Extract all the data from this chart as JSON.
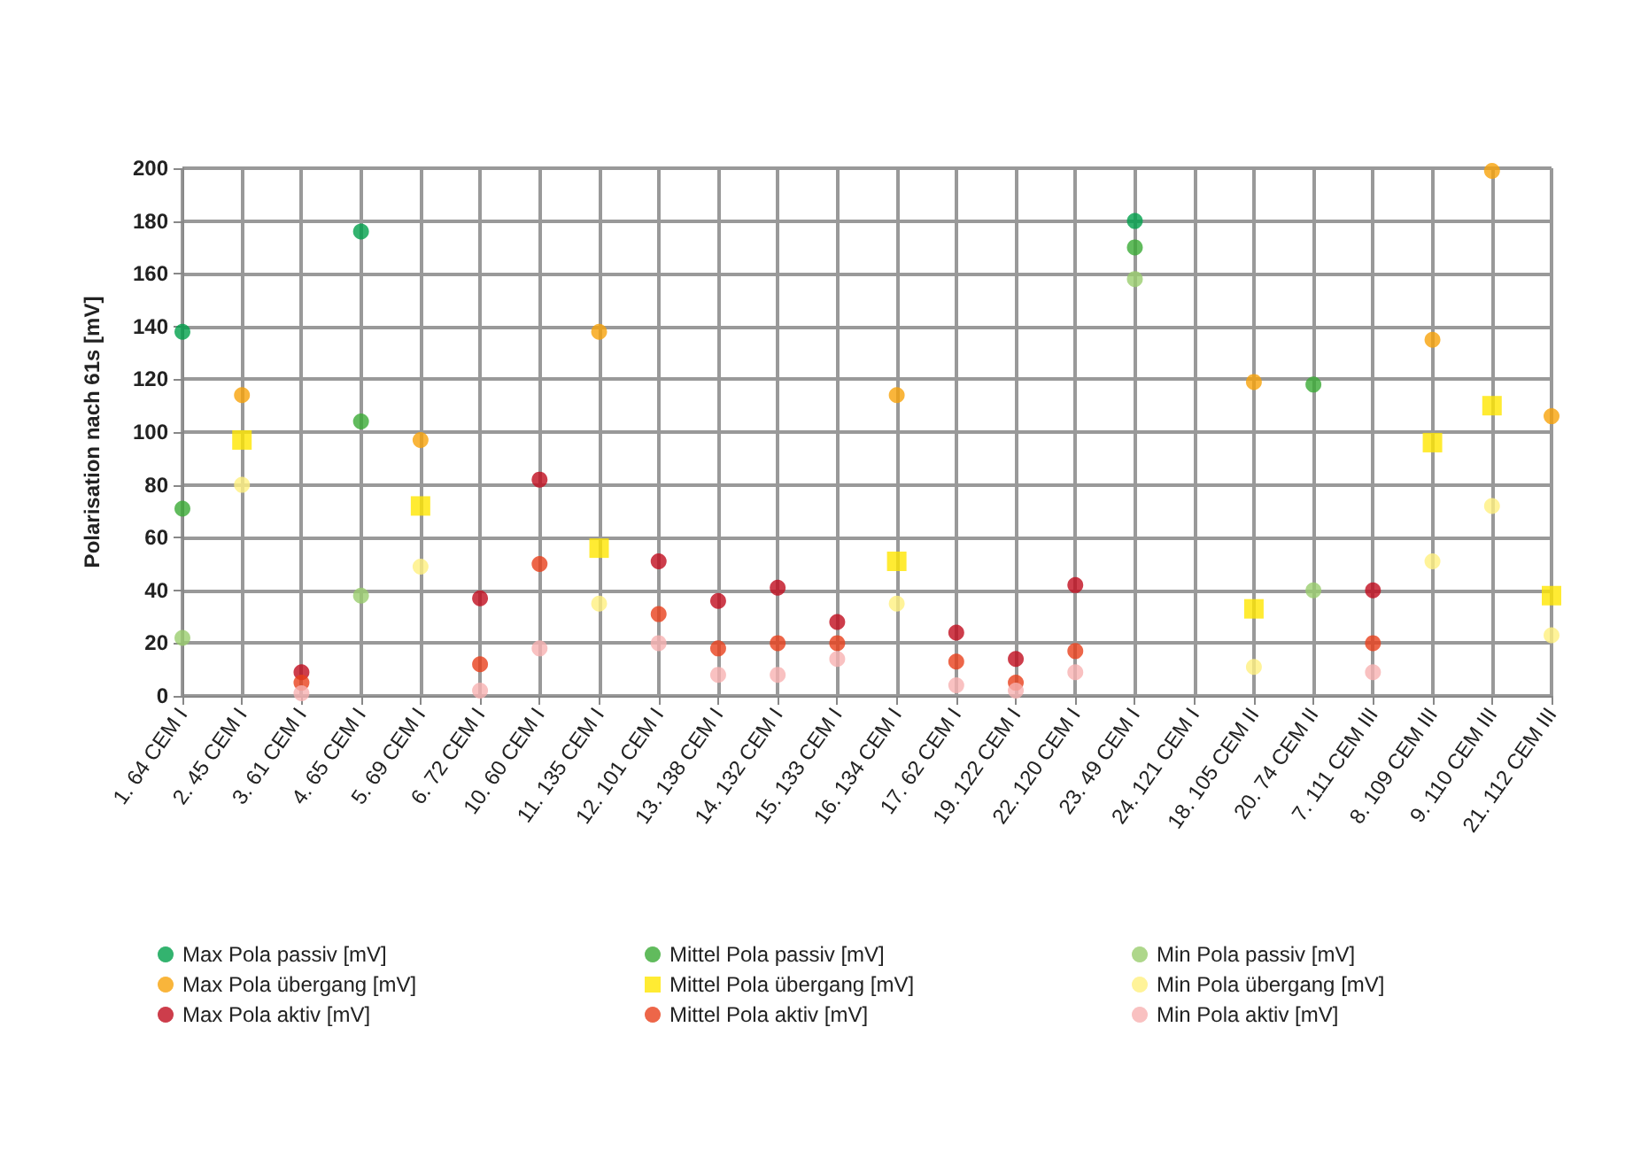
{
  "chart_data": {
    "type": "scatter",
    "ylabel": "Polarisation nach 61s [mV]",
    "categories": [
      "1. 64 CEM I",
      "2. 45 CEM I",
      "3. 61 CEM I",
      "4. 65 CEM I",
      "5. 69 CEM I",
      "6. 72 CEM I",
      "10. 60 CEM I",
      "11. 135 CEM I",
      "12. 101 CEM I",
      "13. 138 CEM I",
      "14. 132 CEM I",
      "15. 133 CEM I",
      "16. 134 CEM I",
      "17. 62 CEM I",
      "19. 122 CEM I",
      "22. 120 CEM I",
      "23. 49 CEM I",
      "24. 121 CEM I",
      "18. 105 CEM II",
      "20. 74 CEM II",
      "7. 111 CEM III",
      "8. 109 CEM III",
      "9. 110 CEM III",
      "21. 112 CEM III"
    ],
    "series": [
      {
        "name": "Max Pola passiv [mV]",
        "color": "#00a04b",
        "values": [
          138,
          null,
          null,
          176,
          null,
          null,
          null,
          null,
          null,
          null,
          null,
          null,
          null,
          null,
          null,
          null,
          180,
          null,
          null,
          null,
          null,
          null,
          null,
          null
        ]
      },
      {
        "name": "Mittel Pola passiv [mV]",
        "color": "#3aaa35",
        "values": [
          71,
          null,
          null,
          104,
          null,
          null,
          null,
          null,
          null,
          null,
          null,
          null,
          null,
          null,
          null,
          null,
          170,
          null,
          null,
          118,
          null,
          null,
          null,
          null
        ]
      },
      {
        "name": "Min Pola passiv [mV]",
        "color": "#9acd6e",
        "values": [
          22,
          null,
          null,
          38,
          null,
          null,
          null,
          null,
          null,
          null,
          null,
          null,
          null,
          null,
          null,
          null,
          158,
          null,
          null,
          40,
          null,
          null,
          null,
          null
        ]
      },
      {
        "name": "Max Pola übergang [mV]",
        "color": "#f7a30a",
        "values": [
          null,
          114,
          null,
          null,
          97,
          null,
          null,
          138,
          null,
          null,
          null,
          null,
          114,
          null,
          null,
          null,
          null,
          null,
          119,
          null,
          null,
          135,
          199,
          106
        ]
      },
      {
        "name": "Mittel Pola übergang [mV]",
        "color": "#ffe600",
        "marker": "square",
        "values": [
          null,
          97,
          null,
          null,
          72,
          null,
          null,
          56,
          null,
          null,
          null,
          null,
          51,
          null,
          null,
          null,
          null,
          null,
          33,
          null,
          null,
          96,
          110,
          38
        ]
      },
      {
        "name": "Min Pola übergang [mV]",
        "color": "#fff080",
        "values": [
          null,
          80,
          null,
          null,
          49,
          null,
          null,
          35,
          null,
          null,
          null,
          null,
          35,
          null,
          null,
          null,
          null,
          null,
          11,
          null,
          null,
          51,
          72,
          23
        ]
      },
      {
        "name": "Max Pola aktiv [mV]",
        "color": "#c00d1e",
        "values": [
          null,
          null,
          9,
          null,
          null,
          37,
          82,
          null,
          51,
          36,
          41,
          28,
          null,
          24,
          14,
          42,
          null,
          null,
          null,
          null,
          40,
          null,
          null,
          null
        ]
      },
      {
        "name": "Mittel Pola aktiv [mV]",
        "color": "#e8401c",
        "values": [
          null,
          null,
          5,
          null,
          null,
          12,
          50,
          null,
          31,
          18,
          20,
          20,
          null,
          13,
          5,
          17,
          null,
          null,
          null,
          null,
          20,
          null,
          null,
          null
        ]
      },
      {
        "name": "Min Pola aktiv [mV]",
        "color": "#f7b2b2",
        "values": [
          null,
          null,
          1,
          null,
          null,
          2,
          18,
          null,
          20,
          8,
          8,
          14,
          null,
          4,
          2,
          9,
          null,
          null,
          null,
          null,
          9,
          null,
          null,
          null
        ]
      }
    ],
    "ylim": [
      0,
      200
    ],
    "yticks": [
      0,
      20,
      40,
      60,
      80,
      100,
      120,
      140,
      160,
      180,
      200
    ],
    "grid": true,
    "legend": "bottom",
    "marker": "circle"
  }
}
